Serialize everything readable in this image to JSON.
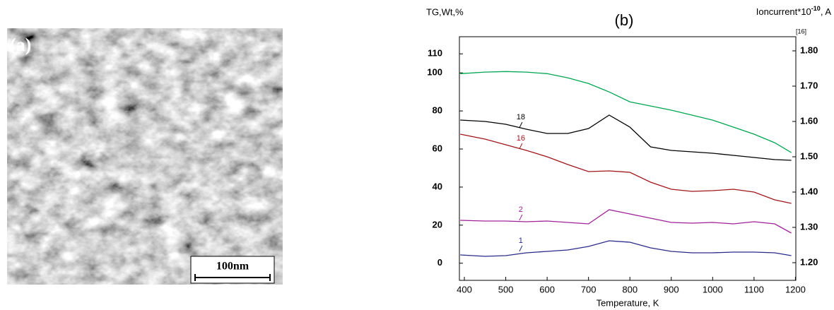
{
  "image": {
    "label": "(a)",
    "scale_bar": "100nm"
  },
  "chart_data": {
    "type": "line",
    "title": "(b)",
    "y_label": "TG,Wt,%",
    "y2_label": {
      "text": "Ioncurrent*10",
      "exponent": "-10",
      "unit": ", A"
    },
    "y2_note": "[16]",
    "x_label": "Temperature, K",
    "x": [
      390,
      450,
      500,
      550,
      600,
      650,
      700,
      750,
      800,
      850,
      900,
      950,
      1000,
      1050,
      1100,
      1150,
      1190
    ],
    "xlim": [
      388,
      1201
    ],
    "xticks": [
      400,
      500,
      600,
      700,
      800,
      900,
      1000,
      1100,
      1200
    ],
    "ylim": [
      -9,
      119
    ],
    "yticks": [
      0,
      20,
      40,
      60,
      80,
      100,
      110
    ],
    "y2lim": [
      1.15,
      1.84
    ],
    "y2ticks": [
      {
        "value": 1.2,
        "label": "1.20"
      },
      {
        "value": 1.3,
        "label": "1.30"
      },
      {
        "value": 1.4,
        "label": "1.40"
      },
      {
        "value": 1.5,
        "label": "1.50"
      },
      {
        "value": 1.6,
        "label": "1.60"
      },
      {
        "value": 1.7,
        "label": "1.70"
      },
      {
        "value": 1.8,
        "label": "1.80"
      }
    ],
    "series": [
      {
        "color": "#00a651",
        "values": [
          99.6,
          100.4,
          100.7,
          100.4,
          99.6,
          97.4,
          94.4,
          90.0,
          84.8,
          82.6,
          80.4,
          77.8,
          75.2,
          71.5,
          67.8,
          63.3,
          58.1
        ]
      },
      {
        "name": "18",
        "color": "#000000",
        "axis": "y2",
        "values": [
          1.604,
          1.6,
          1.592,
          1.578,
          1.566,
          1.566,
          1.58,
          1.618,
          1.584,
          1.528,
          1.518,
          1.514,
          1.51,
          1.504,
          1.498,
          1.492,
          1.49
        ]
      },
      {
        "name": "16",
        "color": "#a0161a",
        "axis": "y2",
        "values": [
          1.564,
          1.55,
          1.534,
          1.518,
          1.5,
          1.478,
          1.458,
          1.46,
          1.456,
          1.428,
          1.408,
          1.402,
          1.404,
          1.408,
          1.4,
          1.378,
          1.368
        ]
      },
      {
        "name": "2",
        "color": "#a0209a",
        "axis": "y2",
        "values": [
          1.32,
          1.318,
          1.318,
          1.316,
          1.318,
          1.314,
          1.31,
          1.35,
          1.338,
          1.326,
          1.314,
          1.312,
          1.314,
          1.31,
          1.316,
          1.31,
          1.284
        ]
      },
      {
        "name": "1",
        "color": "#2a2a8a",
        "axis": "y2",
        "values": [
          1.222,
          1.218,
          1.22,
          1.228,
          1.232,
          1.236,
          1.246,
          1.262,
          1.258,
          1.242,
          1.232,
          1.228,
          1.228,
          1.23,
          1.23,
          1.228,
          1.22
        ]
      }
    ]
  }
}
